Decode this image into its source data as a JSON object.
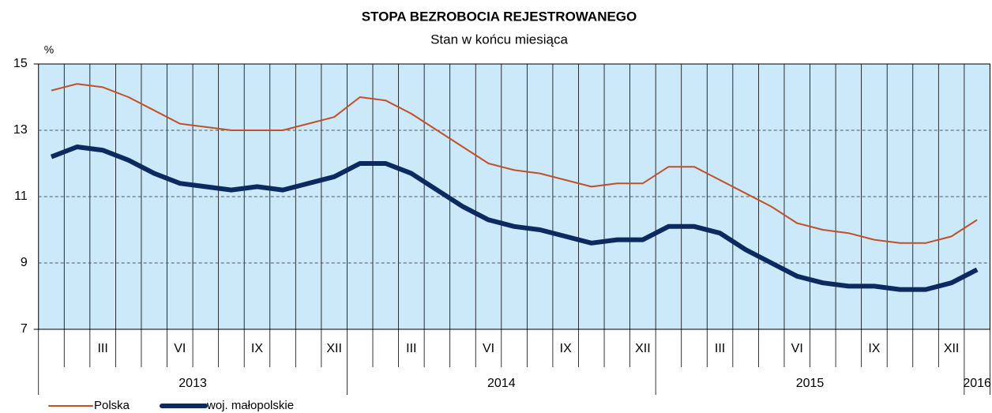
{
  "chart_data": {
    "type": "line",
    "title": "STOPA  BEZROBOCIA  REJESTROWANEGO",
    "subtitle": "Stan  w  końcu  miesiąca",
    "y_unit": "%",
    "categories": [
      null,
      null,
      "III",
      null,
      null,
      "VI",
      null,
      null,
      "IX",
      null,
      null,
      "XII",
      null,
      null,
      "III",
      null,
      null,
      "VI",
      null,
      null,
      "IX",
      null,
      null,
      "XII",
      null,
      null,
      "III",
      null,
      null,
      "VI",
      null,
      null,
      "IX",
      null,
      null,
      "XII",
      null
    ],
    "years": [
      "2013",
      "2014",
      "2015",
      "2016"
    ],
    "series": [
      {
        "name": "Polska",
        "color": "#c0502a",
        "width": 2,
        "values": [
          14.2,
          14.4,
          14.3,
          14.0,
          13.6,
          13.2,
          13.1,
          13.0,
          13.0,
          13.0,
          13.2,
          13.4,
          14.0,
          13.9,
          13.5,
          13.0,
          12.5,
          12.0,
          11.8,
          11.7,
          11.5,
          11.3,
          11.4,
          11.4,
          11.9,
          11.9,
          11.5,
          11.1,
          10.7,
          10.2,
          10.0,
          9.9,
          9.7,
          9.6,
          9.6,
          9.8,
          10.3
        ]
      },
      {
        "name": "woj. małopolskie",
        "color": "#0c2a60",
        "width": 6,
        "values": [
          12.2,
          12.5,
          12.4,
          12.1,
          11.7,
          11.4,
          11.3,
          11.2,
          11.3,
          11.2,
          11.4,
          11.6,
          12.0,
          12.0,
          11.7,
          11.2,
          10.7,
          10.3,
          10.1,
          10.0,
          9.8,
          9.6,
          9.7,
          9.7,
          10.1,
          10.1,
          9.9,
          9.4,
          9.0,
          8.6,
          8.4,
          8.3,
          8.3,
          8.2,
          8.2,
          8.4,
          8.8
        ]
      }
    ],
    "ylim": [
      7,
      15
    ],
    "yticks": [
      7,
      9,
      11,
      13,
      15
    ],
    "grid": true,
    "background": "#cce9f9"
  }
}
